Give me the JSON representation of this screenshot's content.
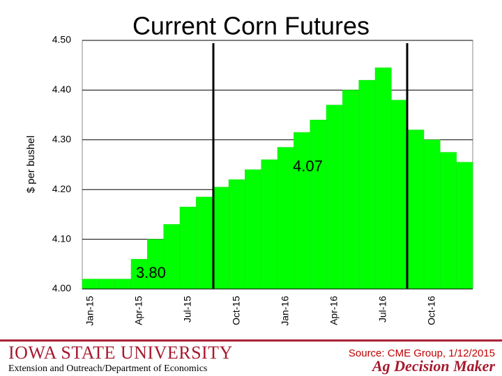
{
  "chart_data": {
    "type": "bar",
    "title": "Current Corn Futures",
    "y_label": "$ per bushel",
    "categories": [
      "Jan-15",
      null,
      null,
      "Apr-15",
      null,
      null,
      "Jul-15",
      null,
      null,
      "Oct-15",
      null,
      null,
      "Jan-16",
      null,
      null,
      "Apr-16",
      null,
      null,
      "Jul-16",
      null,
      null,
      "Oct-16",
      null,
      null
    ],
    "values": [
      4.02,
      4.02,
      4.02,
      4.06,
      4.1,
      4.13,
      4.165,
      4.185,
      4.205,
      4.22,
      4.24,
      4.26,
      4.285,
      4.315,
      4.34,
      4.37,
      4.4,
      4.42,
      4.445,
      4.38,
      4.32,
      4.3,
      4.275,
      4.255
    ],
    "color": "#00ff00",
    "ylim": [
      4.0,
      4.5
    ],
    "yticks": [
      {
        "value": 4.0,
        "label": "4.00"
      },
      {
        "value": 4.1,
        "label": "4.10"
      },
      {
        "value": 4.2,
        "label": "4.20"
      },
      {
        "value": 4.3,
        "label": "4.30"
      },
      {
        "value": 4.4,
        "label": "4.40"
      },
      {
        "value": 4.5,
        "label": "4.50"
      }
    ],
    "grid": true,
    "annotations": [
      "4.07",
      "3.80"
    ]
  },
  "footer": {
    "university": "Iowa State University",
    "department": "Extension and Outreach/Department of Economics",
    "source": "Source: CME Group, 1/12/2015",
    "brand": "Ag Decision Maker"
  }
}
